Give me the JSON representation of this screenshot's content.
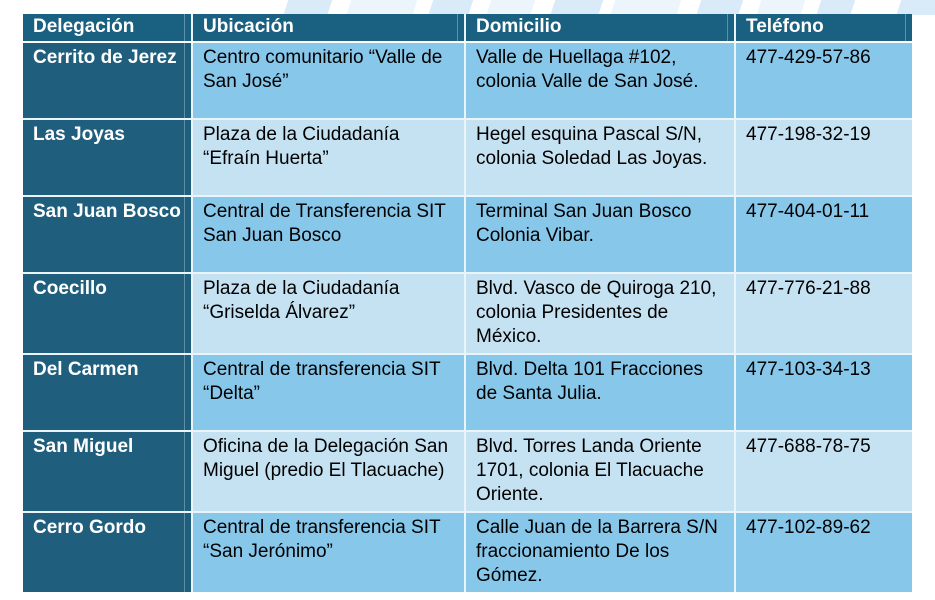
{
  "palette": {
    "header_bg": "#1a6181",
    "header_text": "#ffffff",
    "rowhead_bg": "#1f5e7d",
    "rowhead_text": "#ffffff",
    "row_medium": "#87c7ea",
    "row_light": "#c5e2f3",
    "body_text": "#000000",
    "grid_line": "#e9f4fb",
    "header_underline": "#ffffff",
    "swoosh_a": "#d9ebf9",
    "swoosh_b": "#ecf5fc",
    "page_bg": "#ffffff"
  },
  "table": {
    "columns": [
      {
        "key": "delegacion",
        "label": "Delegación"
      },
      {
        "key": "ubicacion",
        "label": "Ubicación"
      },
      {
        "key": "domicilio",
        "label": "Domicilio"
      },
      {
        "key": "telefono",
        "label": "Teléfono"
      }
    ],
    "rows": [
      {
        "delegacion": "Cerrito de Jerez",
        "ubicacion": "Centro comunitario “Valle de San José”",
        "domicilio": "Valle de Huellaga #102, colonia Valle de San José.",
        "telefono": "477-429-57-86"
      },
      {
        "delegacion": "Las Joyas",
        "ubicacion": "Plaza de la Ciudadanía “Efraín Huerta”",
        "domicilio": "Hegel esquina Pascal S/N, colonia Soledad Las Joyas.",
        "telefono": "477-198-32-19"
      },
      {
        "delegacion": "San Juan Bosco",
        "ubicacion": "Central de Transferencia SIT San Juan Bosco",
        "domicilio": "Terminal San Juan Bosco\nColonia Vibar.",
        "telefono": "477-404-01-11"
      },
      {
        "delegacion": "Coecillo",
        "ubicacion": "Plaza de la Ciudadanía “Griselda Álvarez”",
        "domicilio": "Blvd. Vasco de Quiroga 210, colonia Presidentes de México.",
        "telefono": "477-776-21-88"
      },
      {
        "delegacion": "Del Carmen",
        "ubicacion": "Central de transferencia SIT “Delta”",
        "domicilio": "Blvd. Delta 101 Fracciones de Santa Julia.",
        "telefono": "477-103-34-13"
      },
      {
        "delegacion": "San Miguel",
        "ubicacion": "Oficina de la Delegación San Miguel (predio El Tlacuache)",
        "domicilio": "Blvd. Torres Landa Oriente 1701, colonia El Tlacuache Oriente.",
        "telefono": "477-688-78-75"
      },
      {
        "delegacion": "Cerro Gordo",
        "ubicacion": "Central de transferencia SIT “San Jerónimo”",
        "domicilio": "Calle Juan de la Barrera S/N fraccionamiento De los Gómez.",
        "telefono": "477-102-89-62"
      }
    ]
  }
}
